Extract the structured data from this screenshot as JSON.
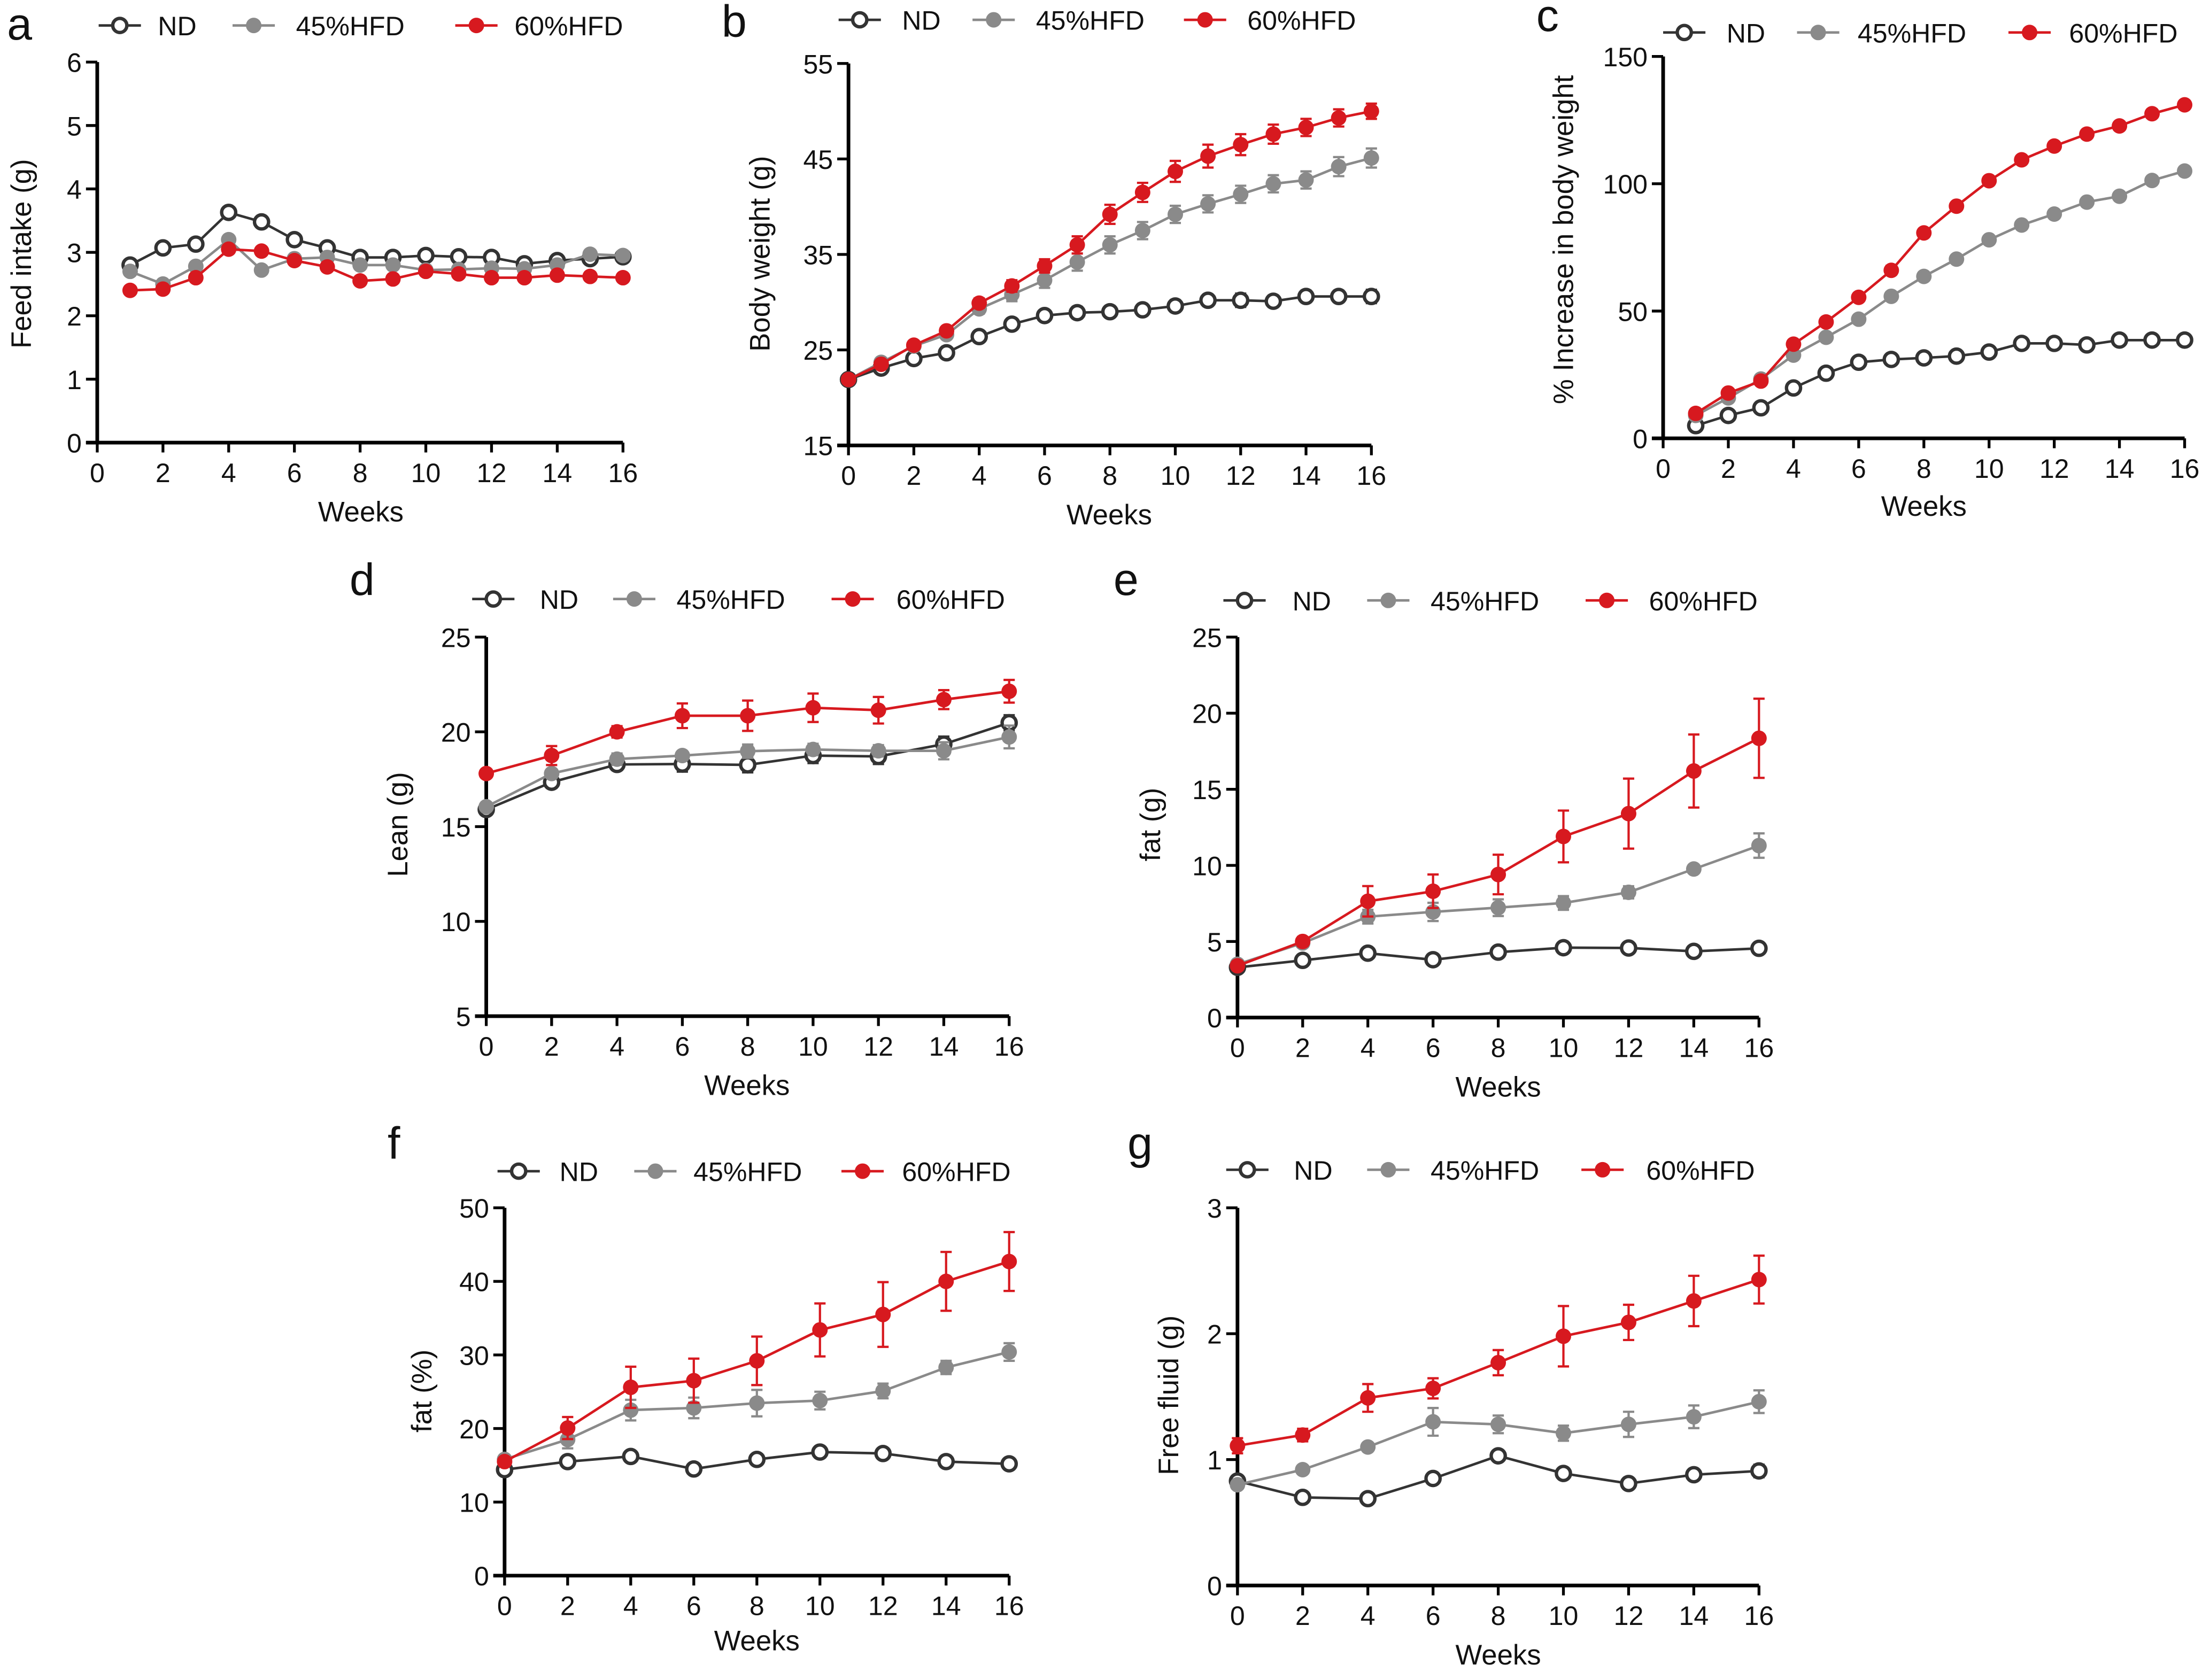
{
  "colors": {
    "ND": "#333333",
    "45%HFD": "#8a8a8a",
    "60%HFD": "#d7191f",
    "axis": "#000000"
  },
  "legend": [
    "ND",
    "45%HFD",
    "60%HFD"
  ],
  "markers": {
    "ND": "open-circle",
    "45%HFD": "filled-circle",
    "60%HFD": "filled-circle"
  },
  "chart_data": [
    {
      "panel": "a",
      "type": "line",
      "xlabel": "Weeks",
      "ylabel": "Feed intake (g)",
      "xlim": [
        0,
        16
      ],
      "ylim": [
        0,
        6
      ],
      "xticks": [
        0,
        2,
        4,
        6,
        8,
        10,
        12,
        14,
        16
      ],
      "yticks": [
        0,
        1,
        2,
        3,
        4,
        5,
        6
      ],
      "x": [
        1,
        2,
        3,
        4,
        5,
        6,
        7,
        8,
        9,
        10,
        11,
        12,
        13,
        14,
        15,
        16
      ],
      "series": [
        {
          "name": "ND",
          "values": [
            2.8,
            3.07,
            3.13,
            3.63,
            3.48,
            3.2,
            3.07,
            2.92,
            2.92,
            2.95,
            2.93,
            2.92,
            2.82,
            2.87,
            2.9,
            2.93
          ]
        },
        {
          "name": "45%HFD",
          "values": [
            2.7,
            2.5,
            2.78,
            3.2,
            2.72,
            2.9,
            2.92,
            2.8,
            2.8,
            2.72,
            2.73,
            2.75,
            2.74,
            2.8,
            2.97,
            2.95
          ]
        },
        {
          "name": "60%HFD",
          "values": [
            2.4,
            2.42,
            2.6,
            3.05,
            3.02,
            2.87,
            2.77,
            2.55,
            2.58,
            2.7,
            2.66,
            2.6,
            2.6,
            2.64,
            2.62,
            2.6
          ]
        }
      ]
    },
    {
      "panel": "b",
      "type": "line",
      "xlabel": "Weeks",
      "ylabel": "Body weight (g)",
      "xlim": [
        0,
        16
      ],
      "ylim": [
        15,
        55
      ],
      "xticks": [
        0,
        2,
        4,
        6,
        8,
        10,
        12,
        14,
        16
      ],
      "yticks": [
        15,
        25,
        35,
        45,
        55
      ],
      "x": [
        0,
        1,
        2,
        3,
        4,
        5,
        6,
        7,
        8,
        9,
        10,
        11,
        12,
        13,
        14,
        15,
        16
      ],
      "series": [
        {
          "name": "ND",
          "values": [
            21.9,
            23.1,
            24.1,
            24.7,
            26.4,
            27.7,
            28.6,
            28.9,
            29.0,
            29.2,
            29.6,
            30.2,
            30.2,
            30.1,
            30.6,
            30.6,
            30.6
          ],
          "err": [
            0.2,
            0.3,
            0.3,
            0.3,
            0.4,
            0.4,
            0.5,
            0.6,
            0.6,
            0.6,
            0.6,
            0.6,
            0.7,
            0.6,
            0.6,
            0.6,
            0.7
          ]
        },
        {
          "name": "45%HFD",
          "values": [
            21.9,
            23.7,
            25.4,
            26.6,
            29.3,
            30.8,
            32.3,
            34.2,
            36.0,
            37.5,
            39.2,
            40.3,
            41.3,
            42.4,
            42.8,
            44.2,
            45.1
          ],
          "err": [
            0.2,
            0.3,
            0.3,
            0.4,
            0.5,
            0.7,
            0.8,
            0.9,
            0.9,
            0.9,
            0.9,
            0.9,
            0.9,
            0.9,
            0.9,
            1.0,
            1.0
          ]
        },
        {
          "name": "60%HFD",
          "values": [
            21.9,
            23.5,
            25.5,
            27.0,
            29.9,
            31.7,
            33.8,
            36.0,
            39.2,
            41.5,
            43.7,
            45.3,
            46.5,
            47.6,
            48.3,
            49.3,
            50.0
          ],
          "err": [
            0.2,
            0.3,
            0.3,
            0.4,
            0.5,
            0.6,
            0.7,
            0.9,
            1.0,
            1.0,
            1.1,
            1.2,
            1.1,
            1.0,
            0.9,
            0.9,
            0.8
          ]
        }
      ]
    },
    {
      "panel": "c",
      "type": "line",
      "xlabel": "Weeks",
      "ylabel": "% Increase in body weight",
      "xlim": [
        0,
        16
      ],
      "ylim": [
        0,
        150
      ],
      "xticks": [
        0,
        2,
        4,
        6,
        8,
        10,
        12,
        14,
        16
      ],
      "yticks": [
        0,
        50,
        100,
        150
      ],
      "x": [
        1,
        2,
        3,
        4,
        5,
        6,
        7,
        8,
        9,
        10,
        11,
        12,
        13,
        14,
        15,
        16
      ],
      "series": [
        {
          "name": "ND",
          "values": [
            5,
            9,
            12,
            19.8,
            25.6,
            29.9,
            31,
            31.6,
            32.3,
            33.9,
            37.3,
            37.3,
            36.7,
            38.6,
            38.6,
            38.6
          ]
        },
        {
          "name": "45%HFD",
          "values": [
            9,
            15.9,
            23.3,
            32.7,
            39.7,
            46.8,
            55.8,
            63.6,
            70.4,
            78,
            83.8,
            88.1,
            92.8,
            95.1,
            101.3,
            105
          ],
          "err": [
            0,
            0,
            0,
            0,
            0,
            0,
            0,
            0,
            0,
            0,
            0,
            0,
            0,
            0,
            0,
            1.5
          ]
        },
        {
          "name": "60%HFD",
          "values": [
            9.8,
            17.8,
            22.5,
            37,
            45.7,
            55.4,
            66,
            80.7,
            91.2,
            101.2,
            109.4,
            114.8,
            119.5,
            122.7,
            127.5,
            131
          ],
          "err": [
            0,
            0,
            0,
            0,
            0,
            0,
            1.8,
            0,
            0,
            0,
            0,
            0,
            0,
            0,
            0,
            0
          ]
        }
      ]
    },
    {
      "panel": "d",
      "type": "line",
      "xlabel": "Weeks",
      "ylabel": "Lean (g)",
      "xlim": [
        0,
        16
      ],
      "ylim": [
        5,
        25
      ],
      "xticks": [
        0,
        2,
        4,
        6,
        8,
        10,
        12,
        14,
        16
      ],
      "yticks": [
        5,
        10,
        15,
        20,
        25
      ],
      "x": [
        0,
        2,
        4,
        6,
        8,
        10,
        12,
        14,
        16
      ],
      "series": [
        {
          "name": "ND",
          "values": [
            15.9,
            17.34,
            18.28,
            18.3,
            18.26,
            18.75,
            18.7,
            19.35,
            20.48
          ],
          "err": [
            0.2,
            0.3,
            0.3,
            0.4,
            0.4,
            0.4,
            0.4,
            0.4,
            0.4
          ]
        },
        {
          "name": "45%HFD",
          "values": [
            16.05,
            17.8,
            18.56,
            18.75,
            18.98,
            19.07,
            19.0,
            19.0,
            19.73
          ],
          "err": [
            0.1,
            0.2,
            0.3,
            0.2,
            0.35,
            0.3,
            0.3,
            0.45,
            0.6
          ]
        },
        {
          "name": "60%HFD",
          "values": [
            17.8,
            18.75,
            20.0,
            20.85,
            20.85,
            21.27,
            21.14,
            21.7,
            22.14
          ],
          "err": [
            0.05,
            0.5,
            0.3,
            0.65,
            0.8,
            0.75,
            0.7,
            0.5,
            0.6
          ]
        }
      ]
    },
    {
      "panel": "e",
      "type": "line",
      "xlabel": "Weeks",
      "ylabel": "fat (g)",
      "xlim": [
        0,
        16
      ],
      "ylim": [
        0,
        25
      ],
      "xticks": [
        0,
        2,
        4,
        6,
        8,
        10,
        12,
        14,
        16
      ],
      "yticks": [
        0,
        5,
        10,
        15,
        20,
        25
      ],
      "x": [
        0,
        2,
        4,
        6,
        8,
        10,
        12,
        14,
        16
      ],
      "series": [
        {
          "name": "ND",
          "values": [
            3.3,
            3.76,
            4.23,
            3.8,
            4.3,
            4.59,
            4.57,
            4.35,
            4.55
          ],
          "err": [
            0.1,
            0.1,
            0.1,
            0.1,
            0.1,
            0.1,
            0.1,
            0.1,
            0.1
          ]
        },
        {
          "name": "45%HFD",
          "values": [
            3.5,
            4.9,
            6.63,
            6.94,
            7.22,
            7.53,
            8.23,
            9.76,
            11.3
          ],
          "err": [
            0.1,
            0.2,
            0.45,
            0.6,
            0.55,
            0.45,
            0.4,
            0.1,
            0.8
          ]
        },
        {
          "name": "60%HFD",
          "values": [
            3.4,
            5.0,
            7.64,
            8.3,
            9.4,
            11.9,
            13.4,
            16.2,
            18.35
          ],
          "err": [
            0.1,
            0.3,
            1.0,
            1.1,
            1.3,
            1.7,
            2.3,
            2.4,
            2.6
          ]
        }
      ]
    },
    {
      "panel": "f",
      "type": "line",
      "xlabel": "Weeks",
      "ylabel": "fat (%)",
      "xlim": [
        0,
        16
      ],
      "ylim": [
        0,
        50
      ],
      "xticks": [
        0,
        2,
        4,
        6,
        8,
        10,
        12,
        14,
        16
      ],
      "yticks": [
        0,
        10,
        20,
        30,
        40,
        50
      ],
      "x": [
        0,
        2,
        4,
        6,
        8,
        10,
        12,
        14,
        16
      ],
      "series": [
        {
          "name": "ND",
          "values": [
            14.4,
            15.5,
            16.2,
            14.5,
            15.8,
            16.8,
            16.6,
            15.5,
            15.2
          ],
          "err": [
            0.3,
            0.3,
            0.3,
            0.3,
            0.3,
            0.3,
            0.3,
            0.3,
            0.5
          ]
        },
        {
          "name": "45%HFD",
          "values": [
            15.8,
            18.5,
            22.5,
            22.8,
            23.45,
            23.8,
            25.1,
            28.3,
            30.4
          ],
          "err": [
            0.2,
            1.2,
            1.4,
            1.4,
            1.8,
            1.2,
            1.0,
            0.9,
            1.2
          ]
        },
        {
          "name": "60%HFD",
          "values": [
            15.5,
            20.06,
            25.6,
            26.5,
            29.2,
            33.4,
            35.5,
            40.0,
            42.7
          ],
          "err": [
            0.2,
            1.5,
            2.8,
            3.0,
            3.3,
            3.6,
            4.4,
            4.0,
            4.0
          ]
        }
      ]
    },
    {
      "panel": "g",
      "type": "line",
      "xlabel": "Weeks",
      "ylabel": "Free fluid (g)",
      "xlim": [
        0,
        16
      ],
      "ylim": [
        0,
        3
      ],
      "xticks": [
        0,
        2,
        4,
        6,
        8,
        10,
        12,
        14,
        16
      ],
      "yticks": [
        0,
        1,
        2,
        3
      ],
      "x": [
        0,
        2,
        4,
        6,
        8,
        10,
        12,
        14,
        16
      ],
      "series": [
        {
          "name": "ND",
          "values": [
            0.83,
            0.7,
            0.69,
            0.85,
            1.03,
            0.89,
            0.81,
            0.88,
            0.91
          ],
          "err": [
            0.02,
            0.02,
            0.02,
            0.02,
            0.02,
            0.02,
            0.02,
            0.02,
            0.05
          ]
        },
        {
          "name": "45%HFD",
          "values": [
            0.8,
            0.92,
            1.1,
            1.3,
            1.28,
            1.21,
            1.28,
            1.34,
            1.46
          ],
          "err": [
            0.02,
            0.02,
            0.02,
            0.11,
            0.07,
            0.06,
            0.1,
            0.09,
            0.09
          ]
        },
        {
          "name": "60%HFD",
          "values": [
            1.11,
            1.195,
            1.49,
            1.566,
            1.77,
            1.98,
            2.09,
            2.26,
            2.43
          ],
          "err": [
            0.06,
            0.05,
            0.11,
            0.08,
            0.1,
            0.24,
            0.14,
            0.2,
            0.19
          ]
        }
      ]
    }
  ]
}
